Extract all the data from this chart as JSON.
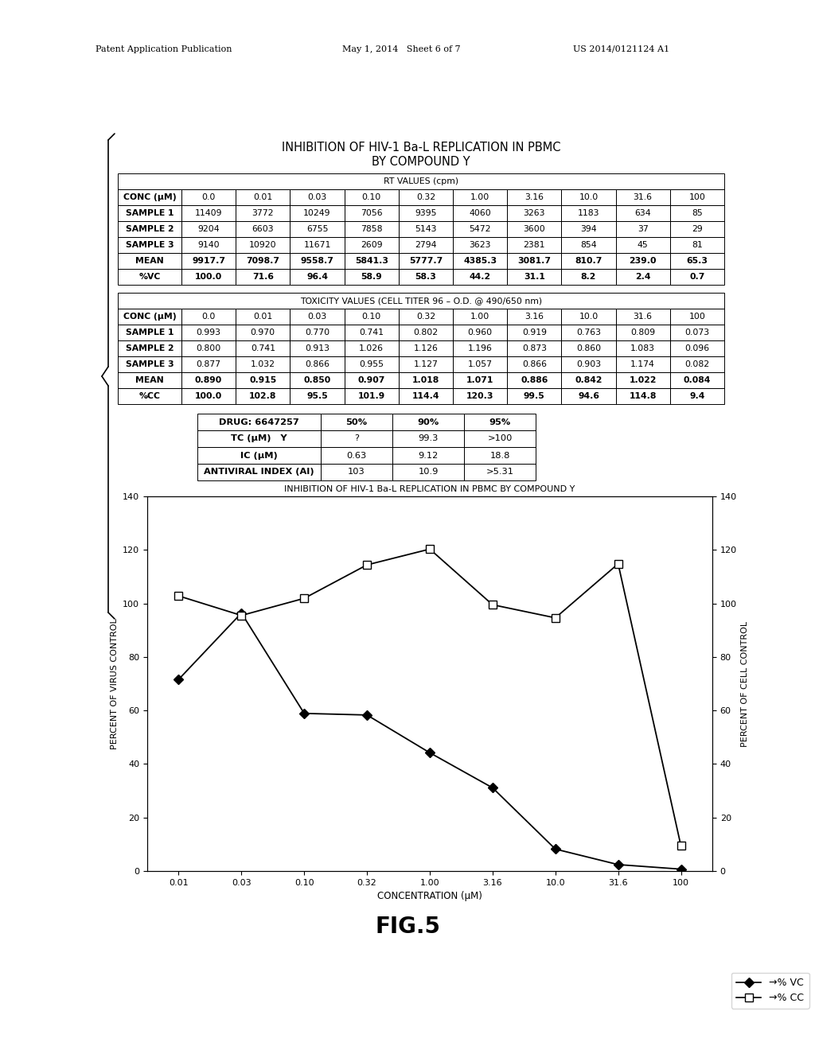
{
  "patent_header_left": "Patent Application Publication",
  "patent_header_mid": "May 1, 2014   Sheet 6 of 7",
  "patent_header_right": "US 2014/0121124 A1",
  "title1": "INHIBITION OF HIV-1 Ba-L REPLICATION IN PBMC",
  "title2": "BY COMPOUND Y",
  "table1_header": "RT VALUES (cpm)",
  "conc_labels": [
    "CONC (μM)",
    "0.0",
    "0.01",
    "0.03",
    "0.10",
    "0.32",
    "1.00",
    "3.16",
    "10.0",
    "31.6",
    "100"
  ],
  "rt_sample1": [
    "SAMPLE 1",
    "11409",
    "3772",
    "10249",
    "7056",
    "9395",
    "4060",
    "3263",
    "1183",
    "634",
    "85"
  ],
  "rt_sample2": [
    "SAMPLE 2",
    "9204",
    "6603",
    "6755",
    "7858",
    "5143",
    "5472",
    "3600",
    "394",
    "37",
    "29"
  ],
  "rt_sample3": [
    "SAMPLE 3",
    "9140",
    "10920",
    "11671",
    "2609",
    "2794",
    "3623",
    "2381",
    "854",
    "45",
    "81"
  ],
  "rt_mean": [
    "MEAN",
    "9917.7",
    "7098.7",
    "9558.7",
    "5841.3",
    "5777.7",
    "4385.3",
    "3081.7",
    "810.7",
    "239.0",
    "65.3"
  ],
  "rt_pvc": [
    "%VC",
    "100.0",
    "71.6",
    "96.4",
    "58.9",
    "58.3",
    "44.2",
    "31.1",
    "8.2",
    "2.4",
    "0.7"
  ],
  "table2_header": "TOXICITY VALUES (CELL TITER 96 – O.D. @ 490/650 nm)",
  "tox_conc": [
    "CONC (μM)",
    "0.0",
    "0.01",
    "0.03",
    "0.10",
    "0.32",
    "1.00",
    "3.16",
    "10.0",
    "31.6",
    "100"
  ],
  "tox_sample1": [
    "SAMPLE 1",
    "0.993",
    "0.970",
    "0.770",
    "0.741",
    "0.802",
    "0.960",
    "0.919",
    "0.763",
    "0.809",
    "0.073"
  ],
  "tox_sample2": [
    "SAMPLE 2",
    "0.800",
    "0.741",
    "0.913",
    "1.026",
    "1.126",
    "1.196",
    "0.873",
    "0.860",
    "1.083",
    "0.096"
  ],
  "tox_sample3": [
    "SAMPLE 3",
    "0.877",
    "1.032",
    "0.866",
    "0.955",
    "1.127",
    "1.057",
    "0.866",
    "0.903",
    "1.174",
    "0.082"
  ],
  "tox_mean": [
    "MEAN",
    "0.890",
    "0.915",
    "0.850",
    "0.907",
    "1.018",
    "1.071",
    "0.886",
    "0.842",
    "1.022",
    "0.084"
  ],
  "tox_pcc": [
    "%CC",
    "100.0",
    "102.8",
    "95.5",
    "101.9",
    "114.4",
    "120.3",
    "99.5",
    "94.6",
    "114.8",
    "9.4"
  ],
  "sum_h0": "DRUG: 6647257",
  "sum_h1": "50%",
  "sum_h2": "90%",
  "sum_h3": "95%",
  "tc_label": "TC (μM)   Y",
  "tc_vals": [
    "?",
    "99.3",
    ">100"
  ],
  "ic_label": "IC (μM)",
  "ic_vals": [
    "0.63",
    "9.12",
    "18.8"
  ],
  "ai_label": "ANTIVIRAL INDEX (AI)",
  "ai_vals": [
    "103",
    "10.9",
    ">5.31"
  ],
  "chart_title": "INHIBITION OF HIV-1 Ba-L REPLICATION IN PBMC BY COMPOUND Y",
  "x_labels": [
    "0.01",
    "0.03",
    "0.10",
    "0.32",
    "1.00",
    "3.16",
    "10.0",
    "31.6",
    "100"
  ],
  "pvc_values": [
    71.6,
    96.4,
    58.9,
    58.3,
    44.2,
    31.1,
    8.2,
    2.4,
    0.7
  ],
  "pcc_values": [
    102.8,
    95.5,
    101.9,
    114.4,
    120.3,
    99.5,
    94.6,
    114.8,
    9.4
  ],
  "xlabel": "CONCENTRATION (μM)",
  "ylabel_left": "PERCENT OF VIRUS CONTROL",
  "ylabel_right": "PERCENT OF CELL CONTROL",
  "legend_vc": "→% VC",
  "legend_cc": "→% CC",
  "fig_label": "FIG.5",
  "bg_color": "#ffffff"
}
